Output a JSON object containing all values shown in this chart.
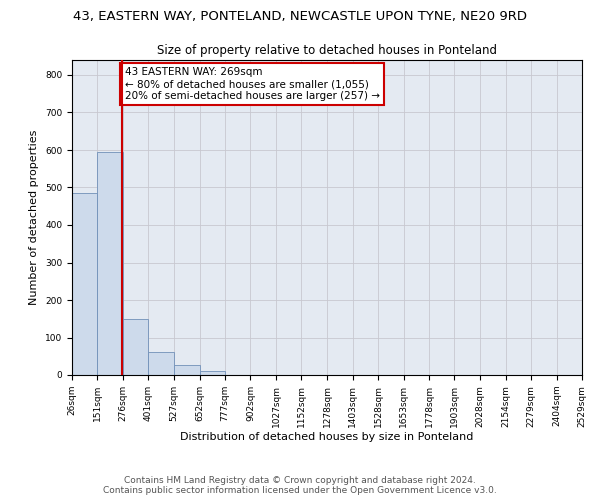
{
  "title1": "43, EASTERN WAY, PONTELAND, NEWCASTLE UPON TYNE, NE20 9RD",
  "title2": "Size of property relative to detached houses in Ponteland",
  "xlabel": "Distribution of detached houses by size in Ponteland",
  "ylabel": "Number of detached properties",
  "bar_color": "#cddaeb",
  "bar_edge_color": "#7090b8",
  "vline_color": "#cc0000",
  "vline_x": 269,
  "annotation_text": "43 EASTERN WAY: 269sqm\n← 80% of detached houses are smaller (1,055)\n20% of semi-detached houses are larger (257) →",
  "annotation_box_color": "#ffffff",
  "annotation_border_color": "#cc0000",
  "bin_edges": [
    26,
    151,
    276,
    401,
    527,
    652,
    777,
    902,
    1027,
    1152,
    1278,
    1403,
    1528,
    1653,
    1778,
    1903,
    2028,
    2154,
    2279,
    2404,
    2529
  ],
  "bin_heights": [
    484,
    594,
    150,
    62,
    27,
    10,
    0,
    0,
    0,
    0,
    0,
    0,
    0,
    0,
    0,
    0,
    0,
    0,
    0,
    0
  ],
  "ylim": [
    0,
    840
  ],
  "yticks": [
    0,
    100,
    200,
    300,
    400,
    500,
    600,
    700,
    800
  ],
  "grid_color": "#c8c8d0",
  "background_color": "#e4eaf2",
  "footer1": "Contains HM Land Registry data © Crown copyright and database right 2024.",
  "footer2": "Contains public sector information licensed under the Open Government Licence v3.0.",
  "title1_fontsize": 9.5,
  "title2_fontsize": 8.5,
  "xlabel_fontsize": 8,
  "ylabel_fontsize": 8,
  "tick_fontsize": 6.5,
  "footer_fontsize": 6.5,
  "annotation_fontsize": 7.5
}
